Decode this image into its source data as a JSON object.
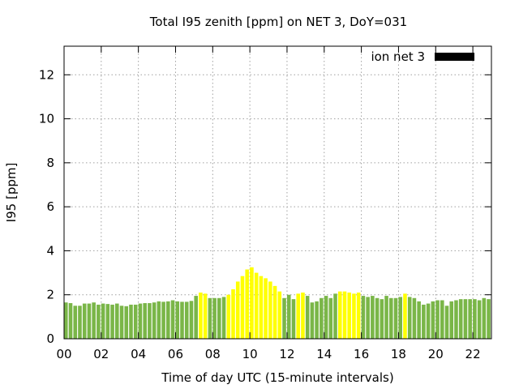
{
  "chart_data": {
    "type": "bar",
    "title": "Total I95 zenith [ppm] on NET 3, DoY=031",
    "xlabel": "Time of day UTC (15-minute intervals)",
    "ylabel": "I95 [ppm]",
    "xlim": [
      0,
      23
    ],
    "ylim": [
      0,
      13.3
    ],
    "x_ticks": [
      "00",
      "02",
      "04",
      "06",
      "08",
      "10",
      "12",
      "14",
      "16",
      "18",
      "20",
      "22"
    ],
    "y_ticks": [
      "0",
      "2",
      "4",
      "6",
      "8",
      "10",
      "12"
    ],
    "grid": true,
    "legend": {
      "position": "top-right",
      "entries": [
        {
          "label": "ion net 3",
          "color": "#000000"
        }
      ]
    },
    "bar_interval_hours": 0.25,
    "series": [
      {
        "x": [
          0.0,
          0.25,
          0.5,
          0.75,
          1.0,
          1.25,
          1.5,
          1.75,
          2.0,
          2.25,
          2.5,
          2.75,
          3.0,
          3.25,
          3.5,
          3.75,
          4.0,
          4.25,
          4.5,
          4.75,
          5.0,
          5.25,
          5.5,
          5.75,
          6.0,
          6.25,
          6.5,
          6.75,
          7.0,
          7.25,
          7.5,
          7.75,
          8.0,
          8.25,
          8.5,
          8.75,
          9.0,
          9.25,
          9.5,
          9.75,
          10.0,
          10.25,
          10.5,
          10.75,
          11.0,
          11.25,
          11.5,
          11.75,
          12.0,
          12.25,
          12.5,
          12.75,
          13.0,
          13.25,
          13.5,
          13.75,
          14.0,
          14.25,
          14.5,
          14.75,
          15.0,
          15.25,
          15.5,
          15.75,
          16.0,
          16.25,
          16.5,
          16.75,
          17.0,
          17.25,
          17.5,
          17.75,
          18.0,
          18.25,
          18.5,
          18.75,
          19.0,
          19.25,
          19.5,
          19.75,
          20.0,
          20.25,
          20.5,
          20.75,
          21.0,
          21.25,
          21.5,
          21.75,
          22.0,
          22.25,
          22.5,
          22.75
        ],
        "values": [
          1.65,
          1.62,
          1.5,
          1.5,
          1.6,
          1.6,
          1.65,
          1.55,
          1.6,
          1.58,
          1.55,
          1.6,
          1.5,
          1.48,
          1.55,
          1.55,
          1.6,
          1.62,
          1.62,
          1.65,
          1.7,
          1.68,
          1.7,
          1.75,
          1.7,
          1.68,
          1.68,
          1.72,
          1.95,
          2.1,
          2.05,
          1.85,
          1.85,
          1.85,
          1.9,
          2.0,
          2.25,
          2.6,
          2.85,
          3.15,
          3.25,
          3.0,
          2.85,
          2.75,
          2.6,
          2.4,
          2.15,
          1.85,
          2.0,
          1.8,
          2.05,
          2.1,
          1.95,
          1.65,
          1.7,
          1.85,
          1.95,
          1.85,
          2.05,
          2.15,
          2.15,
          2.1,
          2.05,
          2.1,
          1.95,
          1.9,
          1.95,
          1.85,
          1.8,
          1.95,
          1.85,
          1.85,
          1.9,
          2.05,
          1.9,
          1.85,
          1.7,
          1.55,
          1.6,
          1.7,
          1.75,
          1.75,
          1.5,
          1.7,
          1.75,
          1.8,
          1.8,
          1.8,
          1.8,
          1.75,
          1.85,
          1.8
        ],
        "colors": [
          "#7ab648",
          "#7ab648",
          "#7ab648",
          "#7ab648",
          "#7ab648",
          "#7ab648",
          "#7ab648",
          "#7ab648",
          "#7ab648",
          "#7ab648",
          "#7ab648",
          "#7ab648",
          "#7ab648",
          "#7ab648",
          "#7ab648",
          "#7ab648",
          "#7ab648",
          "#7ab648",
          "#7ab648",
          "#7ab648",
          "#7ab648",
          "#7ab648",
          "#7ab648",
          "#7ab648",
          "#7ab648",
          "#7ab648",
          "#7ab648",
          "#7ab648",
          "#7ab648",
          "#ffff00",
          "#ffff00",
          "#7ab648",
          "#7ab648",
          "#7ab648",
          "#7ab648",
          "#ffff00",
          "#ffff00",
          "#ffff00",
          "#ffff00",
          "#ffff00",
          "#ffff00",
          "#ffff00",
          "#ffff00",
          "#ffff00",
          "#ffff00",
          "#ffff00",
          "#ffff00",
          "#7ab648",
          "#7ab648",
          "#7ab648",
          "#ffff00",
          "#ffff00",
          "#7ab648",
          "#7ab648",
          "#7ab648",
          "#7ab648",
          "#7ab648",
          "#7ab648",
          "#7ab648",
          "#ffff00",
          "#ffff00",
          "#ffff00",
          "#ffff00",
          "#ffff00",
          "#7ab648",
          "#7ab648",
          "#7ab648",
          "#7ab648",
          "#7ab648",
          "#7ab648",
          "#7ab648",
          "#7ab648",
          "#7ab648",
          "#ffff00",
          "#7ab648",
          "#7ab648",
          "#7ab648",
          "#7ab648",
          "#7ab648",
          "#7ab648",
          "#7ab648",
          "#7ab648",
          "#7ab648",
          "#7ab648",
          "#7ab648",
          "#7ab648",
          "#7ab648",
          "#7ab648",
          "#7ab648",
          "#7ab648",
          "#7ab648",
          "#7ab648"
        ]
      }
    ]
  }
}
